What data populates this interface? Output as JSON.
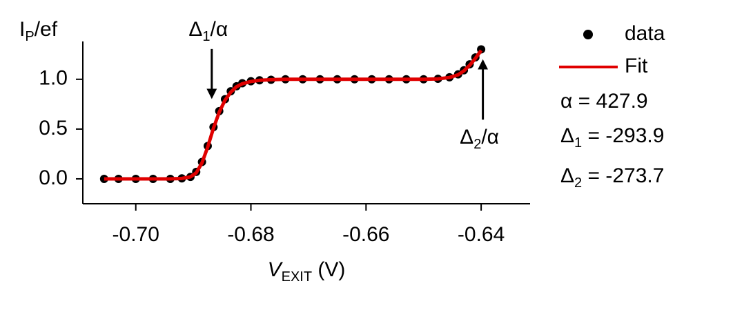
{
  "chart_data": {
    "type": "scatter",
    "x_label": [
      "V",
      "EXIT",
      " (V)"
    ],
    "y_label": [
      "I",
      "P",
      "/ef"
    ],
    "x": [
      -0.7055,
      -0.703,
      -0.7,
      -0.697,
      -0.694,
      -0.692,
      -0.6905,
      -0.6895,
      -0.6885,
      -0.6875,
      -0.6865,
      -0.6855,
      -0.6845,
      -0.6835,
      -0.6825,
      -0.6815,
      -0.68,
      -0.6785,
      -0.6765,
      -0.674,
      -0.671,
      -0.668,
      -0.665,
      -0.662,
      -0.659,
      -0.656,
      -0.653,
      -0.65,
      -0.6475,
      -0.6455,
      -0.644,
      -0.643,
      -0.642,
      -0.641,
      -0.64
    ],
    "series": [
      {
        "name": "data",
        "color": "#000000",
        "style": "markers",
        "values": [
          0,
          0,
          0,
          0,
          0,
          0.005,
          0.02,
          0.07,
          0.17,
          0.33,
          0.52,
          0.68,
          0.8,
          0.88,
          0.93,
          0.96,
          0.98,
          0.99,
          0.995,
          1,
          1,
          1,
          1,
          1,
          1,
          1,
          1,
          1,
          1.005,
          1.02,
          1.05,
          1.09,
          1.15,
          1.22,
          1.3
        ]
      },
      {
        "name": "Fit",
        "color": "#e00000",
        "style": "line",
        "values": [
          0,
          0,
          0,
          0,
          0,
          0.004,
          0.02,
          0.06,
          0.16,
          0.32,
          0.51,
          0.67,
          0.79,
          0.87,
          0.925,
          0.955,
          0.978,
          0.99,
          0.996,
          1,
          1,
          1,
          1,
          1,
          1,
          1,
          1,
          1,
          1.004,
          1.018,
          1.045,
          1.085,
          1.14,
          1.21,
          1.29
        ]
      }
    ],
    "xlim": [
      -0.7092,
      -0.6315
    ],
    "xticks": [
      {
        "value": -0.7,
        "label": "-0.70"
      },
      -0.68,
      -0.66,
      -0.64
    ],
    "ylim": [
      -0.25,
      1.38
    ],
    "yticks": [
      {
        "value": 0,
        "label": "0.0"
      },
      0.5,
      {
        "value": 1,
        "label": "1.0"
      }
    ],
    "annotations": [
      {
        "parts": [
          "Δ",
          "1",
          "/α"
        ],
        "x": -0.6868,
        "y": 1.27,
        "direction": "down"
      },
      {
        "parts": [
          "Δ",
          "2",
          "/α"
        ],
        "x": -0.6397,
        "y": 0.56,
        "direction": "up"
      }
    ],
    "fit_params": [
      [
        "α = 427.9"
      ],
      [
        "Δ",
        "1",
        " = -293.9"
      ],
      [
        "Δ",
        "2",
        " = -273.7"
      ]
    ]
  }
}
